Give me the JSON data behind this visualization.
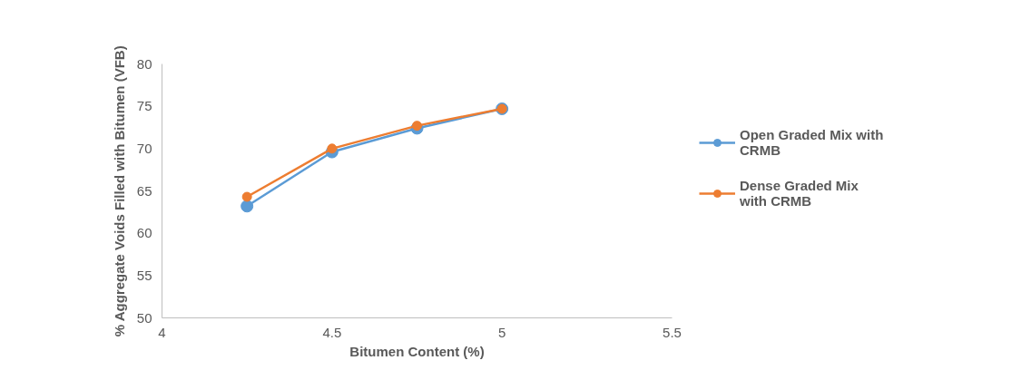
{
  "chart_data": {
    "type": "line",
    "xlabel": "Bitumen Content (%)",
    "ylabel": "% Aggregate Voids Filled with Bitumen (VFB)",
    "x": [
      4.25,
      4.5,
      4.75,
      5
    ],
    "series": [
      {
        "name": "Open Graded Mix with CRMB",
        "color": "#5b9bd5",
        "values": [
          63.2,
          69.6,
          72.4,
          74.7
        ]
      },
      {
        "name": "Dense Graded Mix with CRMB",
        "color": "#ed7d31",
        "values": [
          64.3,
          70.0,
          72.7,
          74.7
        ]
      }
    ],
    "xlim": [
      4,
      5.5
    ],
    "xticks": [
      4,
      4.5,
      5,
      5.5
    ],
    "ylim": [
      50,
      80
    ],
    "yticks": [
      50,
      55,
      60,
      65,
      70,
      75,
      80
    ],
    "grid": false,
    "legend": "right",
    "marker": "circle",
    "line_style": "solid"
  }
}
